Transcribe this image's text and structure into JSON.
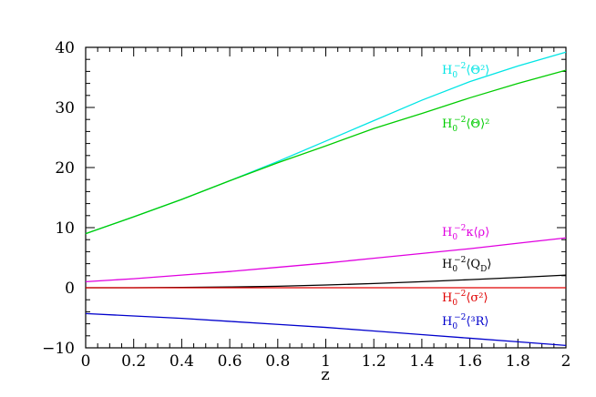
{
  "chart_data": {
    "type": "line",
    "title": "",
    "xlabel": "z",
    "ylabel": "",
    "xlim": [
      0,
      2
    ],
    "ylim": [
      -10,
      40
    ],
    "xticks": [
      0,
      0.2,
      0.4,
      0.6,
      0.8,
      1,
      1.2,
      1.4,
      1.6,
      1.8,
      2
    ],
    "xtick_labels": [
      "0",
      "0.2",
      "0.4",
      "0.6",
      "0.8",
      "1",
      "1.2",
      "1.4",
      "1.6",
      "1.8",
      "2"
    ],
    "yticks": [
      -10,
      0,
      10,
      20,
      30,
      40
    ],
    "ytick_labels": [
      "−10",
      "0",
      "10",
      "20",
      "30",
      "40"
    ],
    "grid": false,
    "legend": "inline labels at right",
    "x": [
      0,
      0.2,
      0.4,
      0.6,
      0.8,
      1.0,
      1.2,
      1.4,
      1.6,
      1.8,
      2.0
    ],
    "series": [
      {
        "name": "H₀⁻²⟨Θ²⟩",
        "color": "#00e5e5",
        "values": [
          9.0,
          11.8,
          14.7,
          17.8,
          21.0,
          24.4,
          27.8,
          31.2,
          34.3,
          36.9,
          39.2
        ]
      },
      {
        "name": "H₀⁻²⟨Θ⟩²",
        "color": "#00cc00",
        "values": [
          9.0,
          11.8,
          14.7,
          17.8,
          20.8,
          23.6,
          26.5,
          29.0,
          31.6,
          34.0,
          36.2
        ]
      },
      {
        "name": "H₀⁻²κ⟨ρ⟩",
        "color": "#e000e0",
        "values": [
          1.0,
          1.5,
          2.1,
          2.7,
          3.4,
          4.1,
          4.9,
          5.7,
          6.5,
          7.4,
          8.3
        ]
      },
      {
        "name": "H₀⁻²⟨Q_D⟩",
        "color": "#000000",
        "values": [
          0.0,
          0.0,
          0.05,
          0.12,
          0.25,
          0.45,
          0.7,
          1.0,
          1.35,
          1.7,
          2.1
        ]
      },
      {
        "name": "H₀⁻²⟨σ²⟩",
        "color": "#e00000",
        "values": [
          0.0,
          0.0,
          0.0,
          0.0,
          0.0,
          0.0,
          0.0,
          0.0,
          0.0,
          0.0,
          0.0
        ]
      },
      {
        "name": "H₀⁻²⟨³R⟩",
        "color": "#0000cc",
        "values": [
          -4.3,
          -4.7,
          -5.1,
          -5.6,
          -6.1,
          -6.6,
          -7.2,
          -7.8,
          -8.4,
          -9.0,
          -9.6
        ]
      }
    ],
    "labels": {
      "theta2": {
        "base": "H",
        "sub": "0",
        "exp": "−2",
        "body": "⟨Θ²⟩",
        "color": "#00e5e5"
      },
      "theta_sq": {
        "base": "H",
        "sub": "0",
        "exp": "−2",
        "body": "⟨Θ⟩²",
        "color": "#00cc00"
      },
      "kappa_rho": {
        "base": "H",
        "sub": "0",
        "exp": "−2",
        "body": "κ⟨ρ⟩",
        "color": "#e000e0"
      },
      "qd": {
        "base": "H",
        "sub": "0",
        "exp": "−2",
        "body": "⟨Q",
        "body_sub": "D",
        "body_end": "⟩",
        "color": "#000000"
      },
      "sigma2": {
        "base": "H",
        "sub": "0",
        "exp": "−2",
        "body": "⟨σ²⟩",
        "color": "#e00000"
      },
      "ricci": {
        "base": "H",
        "sub": "0",
        "exp": "−2",
        "body": "⟨³R⟩",
        "color": "#0000cc"
      }
    }
  }
}
